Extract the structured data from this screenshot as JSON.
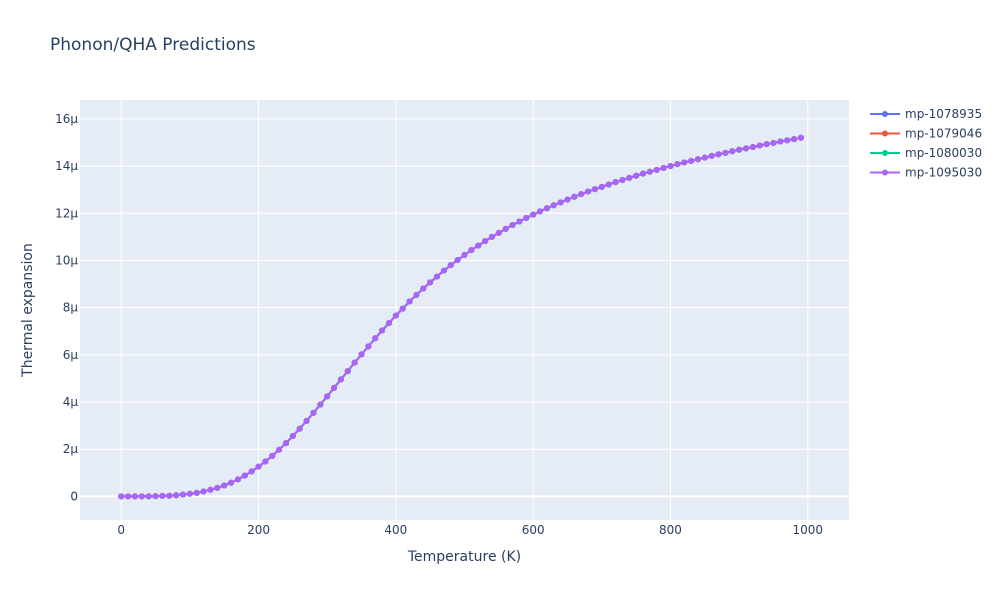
{
  "chart_data": {
    "type": "line",
    "title": "Phonon/QHA Predictions",
    "xlabel": "Temperature (K)",
    "ylabel": "Thermal expansion",
    "xlim": [
      -60,
      1060
    ],
    "ylim": [
      -1.0,
      16.8
    ],
    "x_ticks": [
      0,
      200,
      400,
      600,
      800,
      1000
    ],
    "x_tick_labels": [
      "0",
      "200",
      "400",
      "600",
      "800",
      "1000"
    ],
    "y_ticks": [
      0,
      2,
      4,
      6,
      8,
      10,
      12,
      14,
      16
    ],
    "y_tick_labels": [
      "0",
      "2μ",
      "4μ",
      "6μ",
      "8μ",
      "10μ",
      "12μ",
      "14μ",
      "16μ"
    ],
    "y_unit_multiplier": "1e-6",
    "grid": true,
    "legend_position": "top-right",
    "x": [
      0,
      10,
      20,
      30,
      40,
      50,
      60,
      70,
      80,
      90,
      100,
      110,
      120,
      130,
      140,
      150,
      160,
      170,
      180,
      190,
      200,
      210,
      220,
      230,
      240,
      250,
      260,
      270,
      280,
      290,
      300,
      310,
      320,
      330,
      340,
      350,
      360,
      370,
      380,
      390,
      400,
      410,
      420,
      430,
      440,
      450,
      460,
      470,
      480,
      490,
      500,
      510,
      520,
      530,
      540,
      550,
      560,
      570,
      580,
      590,
      600,
      610,
      620,
      630,
      640,
      650,
      660,
      670,
      680,
      690,
      700,
      710,
      720,
      730,
      740,
      750,
      760,
      770,
      780,
      790,
      800,
      810,
      820,
      830,
      840,
      850,
      860,
      870,
      880,
      890,
      900,
      910,
      920,
      930,
      940,
      950,
      960,
      970,
      980,
      990
    ],
    "series": [
      {
        "name": "mp-1078935",
        "color": "#636efa",
        "values": [
          0,
          0,
          0,
          0,
          0,
          0.01,
          0.02,
          0.03,
          0.05,
          0.08,
          0.11,
          0.15,
          0.21,
          0.28,
          0.36,
          0.46,
          0.58,
          0.72,
          0.88,
          1.06,
          1.26,
          1.48,
          1.72,
          1.98,
          2.26,
          2.56,
          2.87,
          3.2,
          3.54,
          3.89,
          4.24,
          4.6,
          4.96,
          5.31,
          5.67,
          6.02,
          6.36,
          6.7,
          7.03,
          7.35,
          7.66,
          7.96,
          8.26,
          8.54,
          8.81,
          9.07,
          9.32,
          9.57,
          9.8,
          10.02,
          10.23,
          10.44,
          10.63,
          10.82,
          11,
          11.17,
          11.34,
          11.5,
          11.65,
          11.8,
          11.94,
          12.08,
          12.21,
          12.34,
          12.46,
          12.58,
          12.7,
          12.81,
          12.92,
          13.02,
          13.12,
          13.22,
          13.32,
          13.41,
          13.5,
          13.59,
          13.68,
          13.76,
          13.84,
          13.92,
          14,
          14.08,
          14.15,
          14.22,
          14.29,
          14.36,
          14.43,
          14.5,
          14.56,
          14.63,
          14.69,
          14.75,
          14.81,
          14.87,
          14.93,
          14.98,
          15.04,
          15.09,
          15.14,
          15.2
        ]
      },
      {
        "name": "mp-1079046",
        "color": "#ef553b",
        "values": [
          0,
          0,
          0,
          0,
          0,
          0.01,
          0.02,
          0.03,
          0.05,
          0.08,
          0.11,
          0.15,
          0.21,
          0.28,
          0.36,
          0.46,
          0.58,
          0.72,
          0.88,
          1.06,
          1.26,
          1.48,
          1.72,
          1.98,
          2.26,
          2.56,
          2.87,
          3.2,
          3.54,
          3.89,
          4.24,
          4.6,
          4.96,
          5.31,
          5.67,
          6.02,
          6.36,
          6.7,
          7.03,
          7.35,
          7.66,
          7.96,
          8.26,
          8.54,
          8.81,
          9.07,
          9.32,
          9.57,
          9.8,
          10.02,
          10.23,
          10.44,
          10.63,
          10.82,
          11,
          11.17,
          11.34,
          11.5,
          11.65,
          11.8,
          11.94,
          12.08,
          12.21,
          12.34,
          12.46,
          12.58,
          12.7,
          12.81,
          12.92,
          13.02,
          13.12,
          13.22,
          13.32,
          13.41,
          13.5,
          13.59,
          13.68,
          13.76,
          13.84,
          13.92,
          14,
          14.08,
          14.15,
          14.22,
          14.29,
          14.36,
          14.43,
          14.5,
          14.56,
          14.63,
          14.69,
          14.75,
          14.81,
          14.87,
          14.93,
          14.98,
          15.04,
          15.09,
          15.14,
          15.2
        ]
      },
      {
        "name": "mp-1080030",
        "color": "#00cc96",
        "values": [
          0,
          0,
          0,
          0,
          0,
          0.01,
          0.02,
          0.03,
          0.05,
          0.08,
          0.11,
          0.15,
          0.21,
          0.28,
          0.36,
          0.46,
          0.58,
          0.72,
          0.88,
          1.06,
          1.26,
          1.48,
          1.72,
          1.98,
          2.26,
          2.56,
          2.87,
          3.2,
          3.54,
          3.89,
          4.24,
          4.6,
          4.96,
          5.31,
          5.67,
          6.02,
          6.36,
          6.7,
          7.03,
          7.35,
          7.66,
          7.96,
          8.26,
          8.54,
          8.81,
          9.07,
          9.32,
          9.57,
          9.8,
          10.02,
          10.23,
          10.44,
          10.63,
          10.82,
          11,
          11.17,
          11.34,
          11.5,
          11.65,
          11.8,
          11.94,
          12.08,
          12.21,
          12.34,
          12.46,
          12.58,
          12.7,
          12.81,
          12.92,
          13.02,
          13.12,
          13.22,
          13.32,
          13.41,
          13.5,
          13.59,
          13.68,
          13.76,
          13.84,
          13.92,
          14,
          14.08,
          14.15,
          14.22,
          14.29,
          14.36,
          14.43,
          14.5,
          14.56,
          14.63,
          14.69,
          14.75,
          14.81,
          14.87,
          14.93,
          14.98,
          15.04,
          15.09,
          15.14,
          15.2
        ]
      },
      {
        "name": "mp-1095030",
        "color": "#ab63fa",
        "values": [
          0,
          0,
          0,
          0,
          0,
          0.01,
          0.02,
          0.03,
          0.05,
          0.08,
          0.11,
          0.15,
          0.21,
          0.28,
          0.36,
          0.46,
          0.58,
          0.72,
          0.88,
          1.06,
          1.26,
          1.48,
          1.72,
          1.98,
          2.26,
          2.56,
          2.87,
          3.2,
          3.54,
          3.89,
          4.24,
          4.6,
          4.96,
          5.31,
          5.67,
          6.02,
          6.36,
          6.7,
          7.03,
          7.35,
          7.66,
          7.96,
          8.26,
          8.54,
          8.81,
          9.07,
          9.32,
          9.57,
          9.8,
          10.02,
          10.23,
          10.44,
          10.63,
          10.82,
          11,
          11.17,
          11.34,
          11.5,
          11.65,
          11.8,
          11.94,
          12.08,
          12.21,
          12.34,
          12.46,
          12.58,
          12.7,
          12.81,
          12.92,
          13.02,
          13.12,
          13.22,
          13.32,
          13.41,
          13.5,
          13.59,
          13.68,
          13.76,
          13.84,
          13.92,
          14,
          14.08,
          14.15,
          14.22,
          14.29,
          14.36,
          14.43,
          14.5,
          14.56,
          14.63,
          14.69,
          14.75,
          14.81,
          14.87,
          14.93,
          14.98,
          15.04,
          15.09,
          15.14,
          15.2
        ]
      }
    ]
  }
}
